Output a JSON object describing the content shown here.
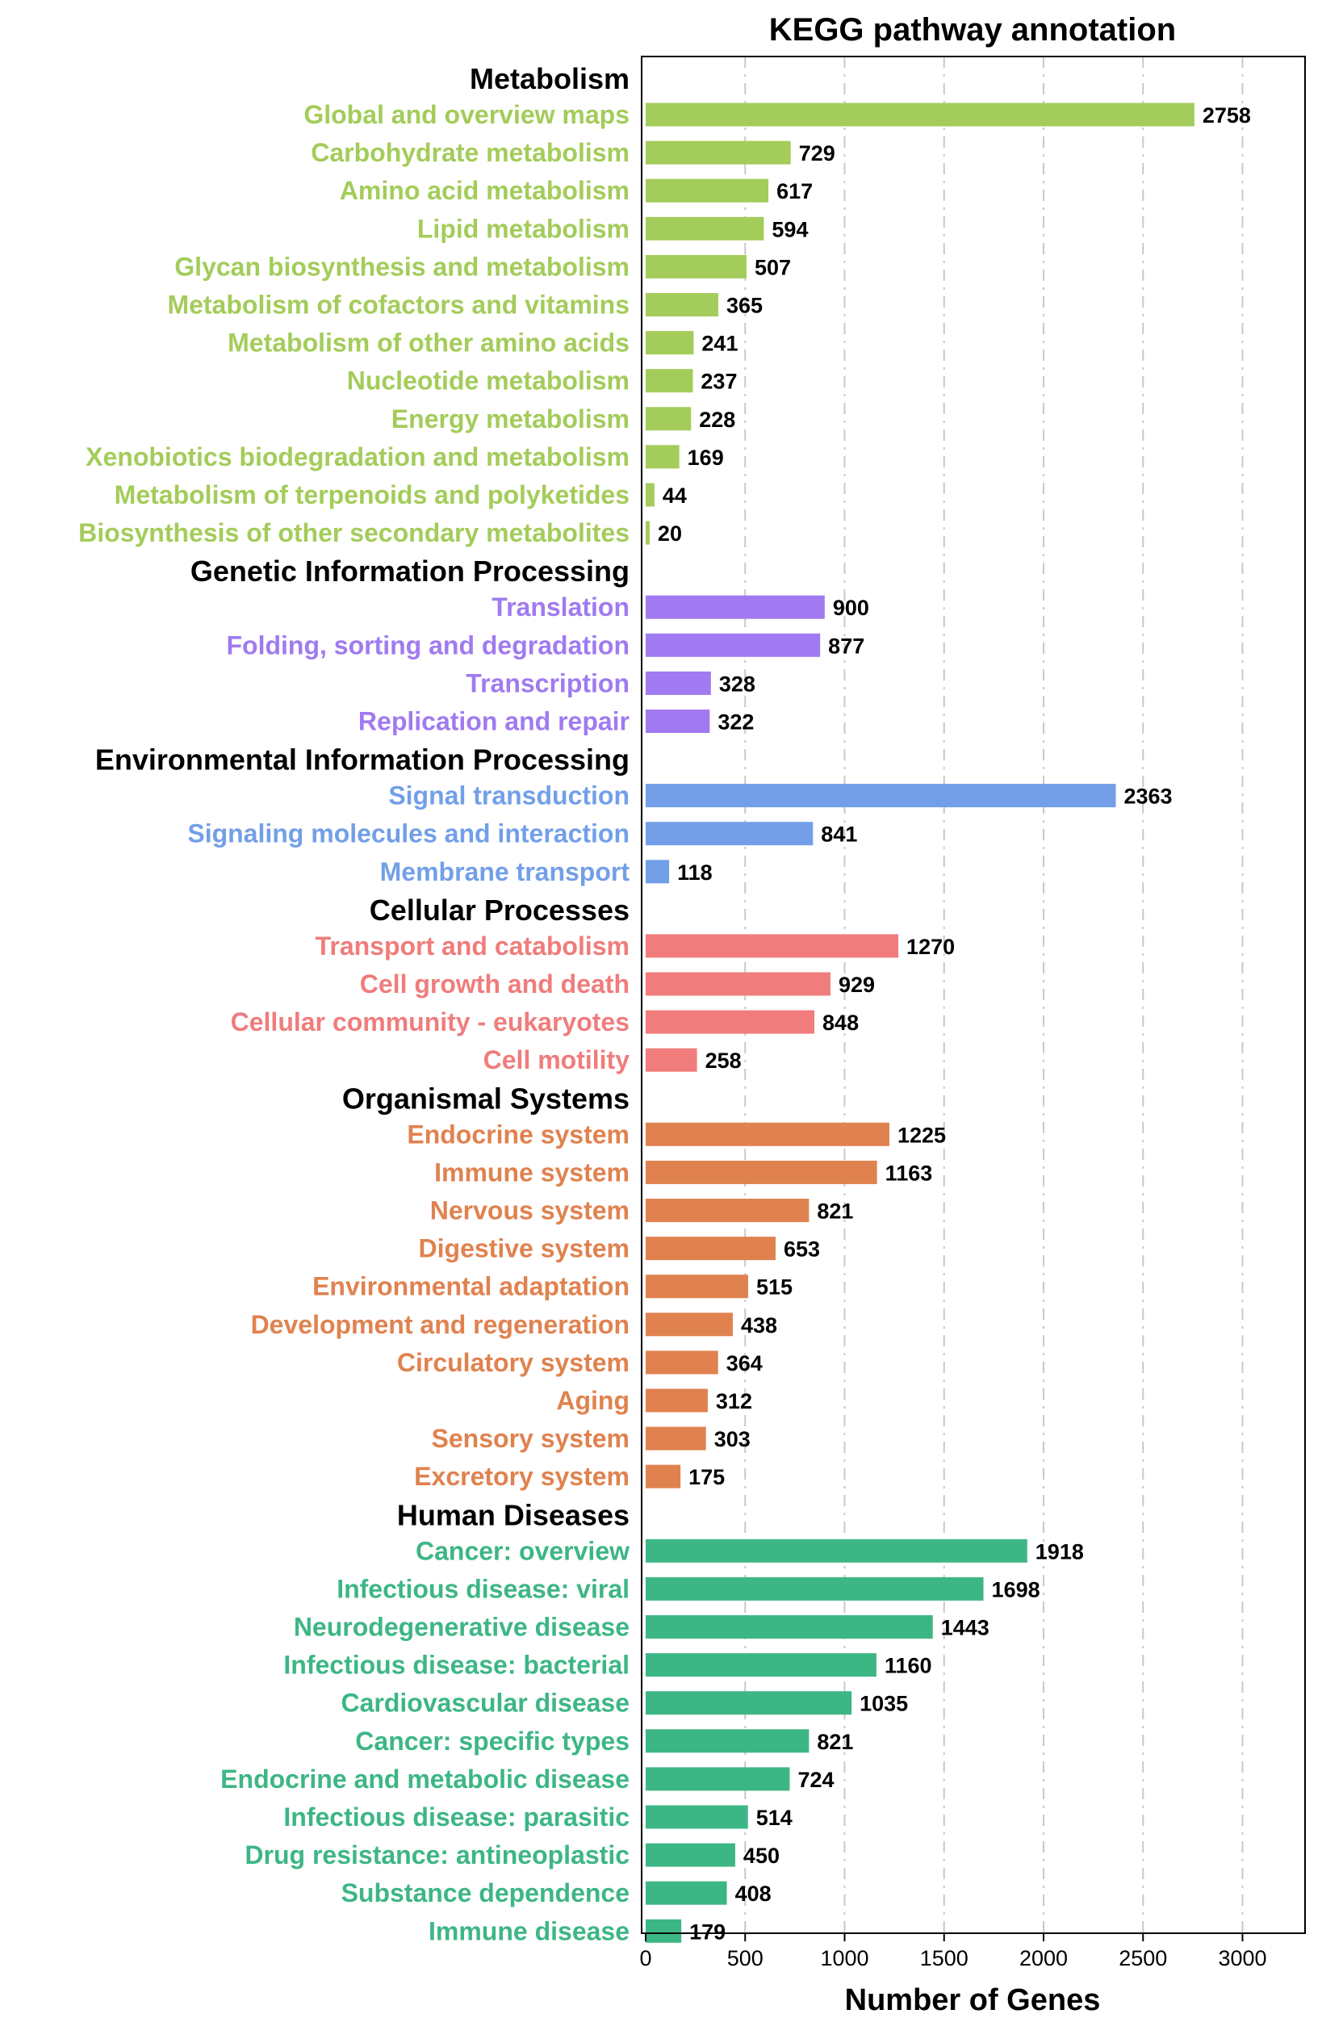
{
  "chart_data": {
    "type": "bar",
    "orientation": "horizontal",
    "title": "KEGG pathway annotation",
    "xlabel": "Number of Genes",
    "ylabel": "",
    "xlim": [
      0,
      3300
    ],
    "xticks": [
      0,
      500,
      1000,
      1500,
      2000,
      2500,
      3000
    ],
    "grid": "vertical dashed",
    "groups": [
      {
        "name": "Metabolism",
        "color": "#a3cc5a",
        "categories": [
          {
            "label": "Global and overview maps",
            "value": 2758
          },
          {
            "label": "Carbohydrate metabolism",
            "value": 729
          },
          {
            "label": "Amino acid metabolism",
            "value": 617
          },
          {
            "label": "Lipid metabolism",
            "value": 594
          },
          {
            "label": "Glycan biosynthesis and metabolism",
            "value": 507
          },
          {
            "label": "Metabolism of cofactors and vitamins",
            "value": 365
          },
          {
            "label": "Metabolism of other amino acids",
            "value": 241
          },
          {
            "label": "Nucleotide metabolism",
            "value": 237
          },
          {
            "label": "Energy metabolism",
            "value": 228
          },
          {
            "label": "Xenobiotics biodegradation and metabolism",
            "value": 169
          },
          {
            "label": "Metabolism of terpenoids and polyketides",
            "value": 44
          },
          {
            "label": "Biosynthesis of other secondary metabolites",
            "value": 20
          }
        ]
      },
      {
        "name": "Genetic Information Processing",
        "color": "#a07af0",
        "categories": [
          {
            "label": "Translation",
            "value": 900
          },
          {
            "label": "Folding, sorting and degradation",
            "value": 877
          },
          {
            "label": "Transcription",
            "value": 328
          },
          {
            "label": "Replication and repair",
            "value": 322
          }
        ]
      },
      {
        "name": "Environmental Information Processing",
        "color": "#729fe8",
        "categories": [
          {
            "label": "Signal transduction",
            "value": 2363
          },
          {
            "label": "Signaling molecules and interaction",
            "value": 841
          },
          {
            "label": "Membrane transport",
            "value": 118
          }
        ]
      },
      {
        "name": "Cellular Processes",
        "color": "#f07c7c",
        "categories": [
          {
            "label": "Transport and catabolism",
            "value": 1270
          },
          {
            "label": "Cell growth and death",
            "value": 929
          },
          {
            "label": "Cellular community - eukaryotes",
            "value": 848
          },
          {
            "label": "Cell motility",
            "value": 258
          }
        ]
      },
      {
        "name": "Organismal Systems",
        "color": "#e0824f",
        "categories": [
          {
            "label": "Endocrine system",
            "value": 1225
          },
          {
            "label": "Immune system",
            "value": 1163
          },
          {
            "label": "Nervous system",
            "value": 821
          },
          {
            "label": "Digestive system",
            "value": 653
          },
          {
            "label": "Environmental adaptation",
            "value": 515
          },
          {
            "label": "Development and regeneration",
            "value": 438
          },
          {
            "label": "Circulatory system",
            "value": 364
          },
          {
            "label": "Aging",
            "value": 312
          },
          {
            "label": "Sensory system",
            "value": 303
          },
          {
            "label": "Excretory system",
            "value": 175
          }
        ]
      },
      {
        "name": "Human Diseases",
        "color": "#3db685",
        "categories": [
          {
            "label": "Cancer: overview",
            "value": 1918
          },
          {
            "label": "Infectious disease: viral",
            "value": 1698
          },
          {
            "label": "Neurodegenerative disease",
            "value": 1443
          },
          {
            "label": "Infectious disease: bacterial",
            "value": 1160
          },
          {
            "label": "Cardiovascular disease",
            "value": 1035
          },
          {
            "label": "Cancer: specific types",
            "value": 821
          },
          {
            "label": "Endocrine and metabolic disease",
            "value": 724
          },
          {
            "label": "Infectious disease: parasitic",
            "value": 514
          },
          {
            "label": "Drug resistance: antineoplastic",
            "value": 450
          },
          {
            "label": "Substance dependence",
            "value": 408
          },
          {
            "label": "Immune disease",
            "value": 179
          }
        ]
      }
    ]
  }
}
